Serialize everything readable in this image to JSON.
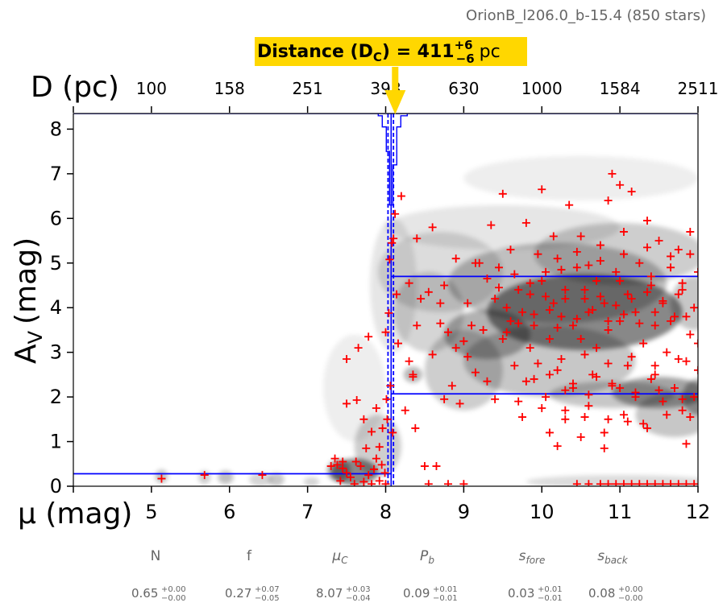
{
  "chart_data": {
    "type": "scatter",
    "title": "OrionB_l206.0_b-15.4 (850 stars)",
    "xlabel": "μ (mag)",
    "ylabel": "A",
    "ylabel_sub": "V",
    "ylabel_unit": "(mag)",
    "top_axis_label": "D (pc)",
    "xlim": [
      4,
      12
    ],
    "ylim": [
      0,
      8.35
    ],
    "x_ticks": [
      4,
      5,
      6,
      7,
      8,
      9,
      10,
      11,
      12
    ],
    "x_tick_labels": [
      "5",
      "6",
      "7",
      "8",
      "9",
      "10",
      "11",
      "12"
    ],
    "y_ticks": [
      0,
      1,
      2,
      3,
      4,
      5,
      6,
      7,
      8
    ],
    "y_tick_labels": [
      "0",
      "1",
      "2",
      "3",
      "4",
      "5",
      "6",
      "7",
      "8"
    ],
    "top_tick_mu": [
      5,
      6,
      7,
      8,
      9,
      10,
      11,
      12
    ],
    "top_tick_labels": [
      "100",
      "158",
      "251",
      "398",
      "630",
      "1000",
      "1584",
      "2511"
    ],
    "distance_annotation": {
      "prefix": "Distance (D",
      "sub": "C",
      "mid": ") = 411",
      "sup": "+6",
      "subval": "−6",
      "unit": "pc",
      "mu": 8.07
    },
    "cloud_distance_mu": 8.07,
    "cloud_distance_mu_range": [
      8.03,
      8.1
    ],
    "foreground_av": 0.28,
    "background_av_range": [
      2.07,
      4.7
    ],
    "params": [
      {
        "name": "N",
        "value": "0.65",
        "plus": "+0.00",
        "minus": "−0.00"
      },
      {
        "name": "f",
        "value": "0.27",
        "plus": "+0.07",
        "minus": "−0.05"
      },
      {
        "name": "μ",
        "sub": "C",
        "value": "8.07",
        "plus": "+0.03",
        "minus": "−0.04"
      },
      {
        "name": "P",
        "sub": "b",
        "value": "0.09",
        "plus": "+0.01",
        "minus": "−0.01"
      },
      {
        "name": "s",
        "sub": "fore",
        "value": "0.03",
        "plus": "+0.01",
        "minus": "−0.01"
      },
      {
        "name": "s",
        "sub": "back",
        "value": "0.08",
        "plus": "+0.00",
        "minus": "−0.00"
      }
    ],
    "stars": [
      [
        5.13,
        0.17
      ],
      [
        5.68,
        0.25
      ],
      [
        6.42,
        0.25
      ],
      [
        7.3,
        0.45
      ],
      [
        7.35,
        0.62
      ],
      [
        7.38,
        0.48
      ],
      [
        7.42,
        0.12
      ],
      [
        7.45,
        0.4
      ],
      [
        7.5,
        0.3
      ],
      [
        7.55,
        0.2
      ],
      [
        7.6,
        0.05
      ],
      [
        7.62,
        0.55
      ],
      [
        7.68,
        0.45
      ],
      [
        7.72,
        0.1
      ],
      [
        7.78,
        0.25
      ],
      [
        7.82,
        0.05
      ],
      [
        7.85,
        0.38
      ],
      [
        7.88,
        0.62
      ],
      [
        7.92,
        0.12
      ],
      [
        7.95,
        0.48
      ],
      [
        7.99,
        0.3
      ],
      [
        8.0,
        0.05
      ],
      [
        7.45,
        0.55
      ],
      [
        7.5,
        1.85
      ],
      [
        7.5,
        2.85
      ],
      [
        7.63,
        1.93
      ],
      [
        7.65,
        3.1
      ],
      [
        7.72,
        1.5
      ],
      [
        7.75,
        0.85
      ],
      [
        7.78,
        3.35
      ],
      [
        7.82,
        1.22
      ],
      [
        7.88,
        1.75
      ],
      [
        7.92,
        0.88
      ],
      [
        7.96,
        1.3
      ],
      [
        8.0,
        3.45
      ],
      [
        8.01,
        1.95
      ],
      [
        8.02,
        1.5
      ],
      [
        8.04,
        3.88
      ],
      [
        8.05,
        5.08
      ],
      [
        8.06,
        2.25
      ],
      [
        8.08,
        5.45
      ],
      [
        8.09,
        1.2
      ],
      [
        8.1,
        5.55
      ],
      [
        8.12,
        6.1
      ],
      [
        8.14,
        4.3
      ],
      [
        8.16,
        3.2
      ],
      [
        8.2,
        6.5
      ],
      [
        8.25,
        1.7
      ],
      [
        8.3,
        4.55
      ],
      [
        8.3,
        2.8
      ],
      [
        8.35,
        2.5
      ],
      [
        8.35,
        2.45
      ],
      [
        8.38,
        1.3
      ],
      [
        8.4,
        5.55
      ],
      [
        8.4,
        3.6
      ],
      [
        8.45,
        4.2
      ],
      [
        8.5,
        0.45
      ],
      [
        8.55,
        4.35
      ],
      [
        8.6,
        5.8
      ],
      [
        8.65,
        0.45
      ],
      [
        8.7,
        4.1
      ],
      [
        8.75,
        1.95
      ],
      [
        8.75,
        4.5
      ],
      [
        8.8,
        3.45
      ],
      [
        8.9,
        3.1
      ],
      [
        8.9,
        5.1
      ],
      [
        8.95,
        1.85
      ],
      [
        9.0,
        3.25
      ],
      [
        9.05,
        4.1
      ],
      [
        9.1,
        3.6
      ],
      [
        9.15,
        2.55
      ],
      [
        9.2,
        5.0
      ],
      [
        9.25,
        3.5
      ],
      [
        9.3,
        2.35
      ],
      [
        9.3,
        4.65
      ],
      [
        9.35,
        5.85
      ],
      [
        9.4,
        1.95
      ],
      [
        9.4,
        4.2
      ],
      [
        9.45,
        4.9
      ],
      [
        9.5,
        3.3
      ],
      [
        9.5,
        6.55
      ],
      [
        9.55,
        4.0
      ],
      [
        9.6,
        3.7
      ],
      [
        9.6,
        5.3
      ],
      [
        9.65,
        2.7
      ],
      [
        9.7,
        4.4
      ],
      [
        9.7,
        1.9
      ],
      [
        9.75,
        3.9
      ],
      [
        9.8,
        5.9
      ],
      [
        9.85,
        4.3
      ],
      [
        9.85,
        3.1
      ],
      [
        9.9,
        2.4
      ],
      [
        9.95,
        5.2
      ],
      [
        9.9,
        3.6
      ],
      [
        10.0,
        4.6
      ],
      [
        10.0,
        6.65
      ],
      [
        10.05,
        4.8
      ],
      [
        10.05,
        2.0
      ],
      [
        10.1,
        3.3
      ],
      [
        10.1,
        1.2
      ],
      [
        10.15,
        4.1
      ],
      [
        10.2,
        5.1
      ],
      [
        10.2,
        2.6
      ],
      [
        10.25,
        3.8
      ],
      [
        10.3,
        4.4
      ],
      [
        10.3,
        1.5
      ],
      [
        10.35,
        6.3
      ],
      [
        10.4,
        3.6
      ],
      [
        10.4,
        2.2
      ],
      [
        10.45,
        4.9
      ],
      [
        10.5,
        3.3
      ],
      [
        10.5,
        5.6
      ],
      [
        10.55,
        4.2
      ],
      [
        10.6,
        1.8
      ],
      [
        10.6,
        3.9
      ],
      [
        10.65,
        2.5
      ],
      [
        10.7,
        4.6
      ],
      [
        10.7,
        3.1
      ],
      [
        10.75,
        5.4
      ],
      [
        10.8,
        1.2
      ],
      [
        10.8,
        4.1
      ],
      [
        10.85,
        3.5
      ],
      [
        10.85,
        6.4
      ],
      [
        10.9,
        2.3
      ],
      [
        10.9,
        7.0
      ],
      [
        10.95,
        4.8
      ],
      [
        11.0,
        3.7
      ],
      [
        11.0,
        6.75
      ],
      [
        11.05,
        5.2
      ],
      [
        11.05,
        1.6
      ],
      [
        11.1,
        4.3
      ],
      [
        11.1,
        2.7
      ],
      [
        11.15,
        6.6
      ],
      [
        11.2,
        3.9
      ],
      [
        11.2,
        2.0
      ],
      [
        11.25,
        5.0
      ],
      [
        11.3,
        3.2
      ],
      [
        11.3,
        1.4
      ],
      [
        11.35,
        5.95
      ],
      [
        11.4,
        4.5
      ],
      [
        11.45,
        2.5
      ],
      [
        11.45,
        3.6
      ],
      [
        11.5,
        5.5
      ],
      [
        11.55,
        1.9
      ],
      [
        11.55,
        4.1
      ],
      [
        11.6,
        3.0
      ],
      [
        11.65,
        4.9
      ],
      [
        11.7,
        2.2
      ],
      [
        11.7,
        3.8
      ],
      [
        11.75,
        5.3
      ],
      [
        11.8,
        1.7
      ],
      [
        11.8,
        4.4
      ],
      [
        11.85,
        2.8
      ],
      [
        11.85,
        0.95
      ],
      [
        11.9,
        3.4
      ],
      [
        11.9,
        5.7
      ],
      [
        11.95,
        4.0
      ],
      [
        11.95,
        2.0
      ],
      [
        12.0,
        3.2
      ],
      [
        12.0,
        4.8
      ],
      [
        10.2,
        0.9
      ],
      [
        10.5,
        1.1
      ],
      [
        10.8,
        0.85
      ],
      [
        9.75,
        1.55
      ],
      [
        10.0,
        1.75
      ],
      [
        10.3,
        2.15
      ],
      [
        10.6,
        2.05
      ],
      [
        10.9,
        2.25
      ],
      [
        11.2,
        2.1
      ],
      [
        11.5,
        2.15
      ],
      [
        11.8,
        1.95
      ],
      [
        11.4,
        2.4
      ],
      [
        11.0,
        2.2
      ],
      [
        10.7,
        2.45
      ],
      [
        10.4,
        2.3
      ],
      [
        10.1,
        2.5
      ],
      [
        9.8,
        2.35
      ],
      [
        10.2,
        3.55
      ],
      [
        10.45,
        3.75
      ],
      [
        10.65,
        3.95
      ],
      [
        10.85,
        3.7
      ],
      [
        11.05,
        3.85
      ],
      [
        11.25,
        3.65
      ],
      [
        11.45,
        3.9
      ],
      [
        11.65,
        3.7
      ],
      [
        11.85,
        3.8
      ],
      [
        10.3,
        4.2
      ],
      [
        10.55,
        4.4
      ],
      [
        10.75,
        4.25
      ],
      [
        10.95,
        4.05
      ],
      [
        11.15,
        4.2
      ],
      [
        11.35,
        4.35
      ],
      [
        11.55,
        4.15
      ],
      [
        11.75,
        4.3
      ],
      [
        9.55,
        3.45
      ],
      [
        9.7,
        3.65
      ],
      [
        9.9,
        3.85
      ],
      [
        10.1,
        3.95
      ],
      [
        9.45,
        4.45
      ],
      [
        9.65,
        4.75
      ],
      [
        9.85,
        4.55
      ],
      [
        10.05,
        4.25
      ],
      [
        10.25,
        4.85
      ],
      [
        10.6,
        4.95
      ],
      [
        11.0,
        4.6
      ],
      [
        11.4,
        4.7
      ],
      [
        11.8,
        4.55
      ],
      [
        8.55,
        0.05
      ],
      [
        8.8,
        0.05
      ],
      [
        9.0,
        0.05
      ],
      [
        10.45,
        0.05
      ],
      [
        10.6,
        0.05
      ],
      [
        10.75,
        0.05
      ],
      [
        10.85,
        0.05
      ],
      [
        10.95,
        0.05
      ],
      [
        11.05,
        0.05
      ],
      [
        11.15,
        0.05
      ],
      [
        11.25,
        0.05
      ],
      [
        11.35,
        0.05
      ],
      [
        11.45,
        0.05
      ],
      [
        11.55,
        0.05
      ],
      [
        11.65,
        0.05
      ],
      [
        11.75,
        0.05
      ],
      [
        11.85,
        0.05
      ],
      [
        11.95,
        0.05
      ],
      [
        10.85,
        1.5
      ],
      [
        11.1,
        1.45
      ],
      [
        11.35,
        1.3
      ],
      [
        11.6,
        1.6
      ],
      [
        11.9,
        1.55
      ],
      [
        10.3,
        1.7
      ],
      [
        10.55,
        1.55
      ],
      [
        9.95,
        2.75
      ],
      [
        10.25,
        2.85
      ],
      [
        10.55,
        2.95
      ],
      [
        10.85,
        2.75
      ],
      [
        11.15,
        2.9
      ],
      [
        11.45,
        2.7
      ],
      [
        11.75,
        2.85
      ],
      [
        12.0,
        2.6
      ],
      [
        10.15,
        5.6
      ],
      [
        10.45,
        5.25
      ],
      [
        10.75,
        5.05
      ],
      [
        11.05,
        5.7
      ],
      [
        11.35,
        5.35
      ],
      [
        11.65,
        5.15
      ],
      [
        11.9,
        5.2
      ],
      [
        9.15,
        5.0
      ],
      [
        9.05,
        2.9
      ],
      [
        8.85,
        2.25
      ],
      [
        8.6,
        2.95
      ],
      [
        8.7,
        3.65
      ]
    ],
    "blobs": [
      [
        10.55,
        3.9,
        1.25,
        0.85,
        0.85
      ],
      [
        11.5,
        2.1,
        0.6,
        0.35,
        0.65
      ],
      [
        10.9,
        2.05,
        0.8,
        0.3,
        0.4
      ],
      [
        9.3,
        3.4,
        0.55,
        0.55,
        0.55
      ],
      [
        10.2,
        4.55,
        1.4,
        0.9,
        0.45
      ],
      [
        11.0,
        5.2,
        1.1,
        0.7,
        0.35
      ],
      [
        10.1,
        2.8,
        1.1,
        0.8,
        0.4
      ],
      [
        9.0,
        2.6,
        0.5,
        0.9,
        0.35
      ],
      [
        8.55,
        3.9,
        0.45,
        0.9,
        0.3
      ],
      [
        8.7,
        4.8,
        0.8,
        0.9,
        0.25
      ],
      [
        9.5,
        5.8,
        1.5,
        0.5,
        0.18
      ],
      [
        10.5,
        6.9,
        1.5,
        0.5,
        0.12
      ],
      [
        7.6,
        0.32,
        0.3,
        0.3,
        0.85
      ],
      [
        7.4,
        0.35,
        0.15,
        0.25,
        0.6
      ],
      [
        7.9,
        0.9,
        0.3,
        0.7,
        0.35
      ],
      [
        7.6,
        2.2,
        0.4,
        1.2,
        0.12
      ],
      [
        8.1,
        4.5,
        0.3,
        1.5,
        0.18
      ],
      [
        11.7,
        1.6,
        0.5,
        0.5,
        0.4
      ],
      [
        11.0,
        0.1,
        1.2,
        0.15,
        0.25
      ],
      [
        5.13,
        0.22,
        0.08,
        0.15,
        0.45
      ],
      [
        5.68,
        0.2,
        0.08,
        0.15,
        0.35
      ],
      [
        5.95,
        0.2,
        0.1,
        0.15,
        0.45
      ],
      [
        6.4,
        0.15,
        0.15,
        0.15,
        0.3
      ],
      [
        6.6,
        0.15,
        0.1,
        0.15,
        0.4
      ],
      [
        7.05,
        0.1,
        0.1,
        0.1,
        0.3
      ],
      [
        12.0,
        2.0,
        0.2,
        0.4,
        0.6
      ],
      [
        11.95,
        4.1,
        0.3,
        0.6,
        0.4
      ],
      [
        8.35,
        2.5,
        0.12,
        0.18,
        0.5
      ]
    ],
    "colors": {
      "stars": "#ff0000",
      "model": "#0000ff",
      "annotation_bg": "#ffd700",
      "arrow": "#ffd700",
      "title": "#666666",
      "params": "#666666"
    }
  }
}
